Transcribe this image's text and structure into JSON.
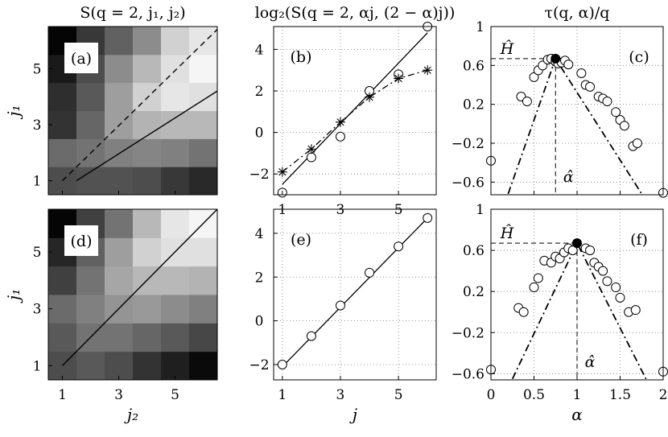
{
  "chart_data": [
    {
      "id": "a",
      "panel_label": "(a)",
      "type": "heatmap",
      "title": "S(q = 2, j₁, j₂)",
      "xlabel": "",
      "ylabel": "j₁",
      "x_ticks": [
        "1",
        "3",
        "5"
      ],
      "y_ticks": [
        "1",
        "3",
        "5"
      ],
      "grid_values": [
        [
          0.3,
          0.32,
          0.32,
          0.3,
          0.22,
          0.16
        ],
        [
          0.42,
          0.45,
          0.5,
          0.52,
          0.5,
          0.45
        ],
        [
          0.2,
          0.4,
          0.62,
          0.7,
          0.72,
          0.72
        ],
        [
          0.18,
          0.35,
          0.62,
          0.82,
          0.9,
          0.88
        ],
        [
          0.1,
          0.3,
          0.55,
          0.72,
          0.88,
          0.96
        ],
        [
          0.02,
          0.22,
          0.38,
          0.55,
          0.82,
          0.9
        ]
      ],
      "lines": [
        {
          "style": "dashed",
          "x": [
            1,
            6.5
          ],
          "y": [
            1,
            6.4
          ]
        },
        {
          "style": "solid",
          "x": [
            1.5,
            6.5
          ],
          "y": [
            1,
            4.2
          ]
        }
      ]
    },
    {
      "id": "b",
      "panel_label": "(b)",
      "type": "line",
      "title": "log₂(S(q = 2, αj, (2 − α)j))",
      "xlabel": "",
      "ylabel": "",
      "xlim": [
        0.7,
        6.3
      ],
      "ylim": [
        -3,
        5.1
      ],
      "x_ticks": [
        1,
        3,
        5
      ],
      "y_ticks": [
        4,
        2,
        0,
        -2
      ],
      "grid": true,
      "series": [
        {
          "marker": "circle",
          "x": [
            1,
            2,
            3,
            4,
            5,
            6
          ],
          "y": [
            -2.9,
            -1.2,
            -0.2,
            2.0,
            2.8,
            5.1
          ]
        },
        {
          "marker": "star",
          "x": [
            1,
            2,
            3,
            4,
            5,
            6
          ],
          "y": [
            -1.9,
            -0.8,
            0.5,
            1.7,
            2.6,
            3.0
          ]
        },
        {
          "style": "solid",
          "x": [
            1,
            6
          ],
          "y": [
            -2.5,
            4.8
          ]
        },
        {
          "style": "dashdot",
          "x": [
            1,
            2,
            3,
            4,
            5,
            6
          ],
          "y": [
            -1.9,
            -0.8,
            0.5,
            1.7,
            2.6,
            3.0
          ]
        }
      ]
    },
    {
      "id": "c",
      "panel_label": "(c)",
      "type": "scatter",
      "title": "τ(q, α)/q",
      "xlabel": "",
      "ylabel": "",
      "xlim": [
        0,
        2
      ],
      "ylim": [
        -0.73,
        1.0
      ],
      "x_ticks": [
        0,
        0.5,
        1,
        1.5,
        2
      ],
      "y_ticks": [
        "1",
        "0.6",
        "0.2",
        "-0.2",
        "-0.6"
      ],
      "y_tick_values": [
        1,
        0.6,
        0.2,
        -0.2,
        -0.6
      ],
      "grid": true,
      "annotations": {
        "H_label": "Ĥ",
        "alpha_label": "α̂",
        "H": 0.67,
        "alpha": 0.75
      },
      "series": [
        {
          "marker": "open-circle",
          "x": [
            0,
            0.35,
            0.42,
            0.5,
            0.55,
            0.6,
            0.66,
            0.7,
            0.75,
            0.78,
            0.82,
            0.86,
            0.9,
            1.05,
            1.1,
            1.15,
            1.25,
            1.3,
            1.35,
            1.45,
            1.5,
            1.55,
            1.65,
            1.7,
            2.0
          ],
          "y": [
            -0.38,
            0.28,
            0.23,
            0.48,
            0.55,
            0.6,
            0.66,
            0.67,
            0.64,
            0.62,
            0.63,
            0.65,
            0.61,
            0.52,
            0.4,
            0.38,
            0.28,
            0.26,
            0.23,
            0.12,
            0.04,
            -0.02,
            -0.23,
            -0.2,
            -0.71
          ]
        },
        {
          "marker": "filled-circle",
          "x": [
            0.75
          ],
          "y": [
            0.67
          ]
        },
        {
          "style": "dashdot",
          "x": [
            0.2,
            0.75,
            1.75
          ],
          "y": [
            -0.72,
            0.67,
            -0.72
          ]
        }
      ]
    },
    {
      "id": "d",
      "panel_label": "(d)",
      "type": "heatmap",
      "title": "",
      "xlabel": "j₂",
      "ylabel": "j₁",
      "x_ticks": [
        "1",
        "3",
        "5"
      ],
      "y_ticks": [
        "1",
        "3",
        "5"
      ],
      "grid_values": [
        [
          0.3,
          0.35,
          0.3,
          0.2,
          0.12,
          0.04
        ],
        [
          0.35,
          0.45,
          0.45,
          0.4,
          0.35,
          0.28
        ],
        [
          0.42,
          0.5,
          0.58,
          0.6,
          0.55,
          0.5
        ],
        [
          0.25,
          0.45,
          0.65,
          0.72,
          0.72,
          0.7
        ],
        [
          0.15,
          0.38,
          0.62,
          0.82,
          0.88,
          0.88
        ],
        [
          0.02,
          0.25,
          0.45,
          0.72,
          0.9,
          0.96
        ]
      ],
      "lines": [
        {
          "style": "solid",
          "x": [
            1,
            6.5
          ],
          "y": [
            1,
            6.5
          ]
        }
      ]
    },
    {
      "id": "e",
      "panel_label": "(e)",
      "type": "line",
      "title": "",
      "xlabel": "j",
      "ylabel": "",
      "xlim": [
        0.7,
        6.3
      ],
      "ylim": [
        -2.7,
        5.1
      ],
      "x_ticks": [
        1,
        3,
        5
      ],
      "y_ticks": [
        4,
        2,
        0,
        -2
      ],
      "grid": true,
      "series": [
        {
          "marker": "circle",
          "x": [
            1,
            2,
            3,
            4,
            5,
            6
          ],
          "y": [
            -2.0,
            -0.7,
            0.7,
            2.2,
            3.4,
            4.7
          ]
        },
        {
          "style": "solid",
          "x": [
            1,
            6
          ],
          "y": [
            -2.1,
            4.7
          ]
        }
      ]
    },
    {
      "id": "f",
      "panel_label": "(f)",
      "type": "scatter",
      "title": "",
      "xlabel": "α",
      "ylabel": "",
      "xlim": [
        0,
        2
      ],
      "ylim": [
        -0.66,
        1.0
      ],
      "x_ticks": [
        0,
        0.5,
        1,
        1.5,
        2
      ],
      "x_tick_labels": [
        "0",
        "0.5",
        "1",
        "1.5",
        "2"
      ],
      "y_ticks": [
        "1",
        "0.6",
        "0.2",
        "-0.2",
        "-0.6"
      ],
      "y_tick_values": [
        1,
        0.6,
        0.2,
        -0.2,
        -0.6
      ],
      "grid": true,
      "annotations": {
        "H_label": "Ĥ",
        "alpha_label": "α̂",
        "H": 0.67,
        "alpha": 1.0
      },
      "series": [
        {
          "marker": "open-circle",
          "x": [
            0,
            0.32,
            0.38,
            0.5,
            0.55,
            0.62,
            0.7,
            0.75,
            0.8,
            0.85,
            0.9,
            0.95,
            1.1,
            1.15,
            1.2,
            1.25,
            1.3,
            1.35,
            1.45,
            1.5,
            1.6,
            1.68,
            2.0
          ],
          "y": [
            -0.56,
            0.04,
            0.0,
            0.24,
            0.33,
            0.5,
            0.48,
            0.54,
            0.52,
            0.58,
            0.62,
            0.6,
            0.62,
            0.6,
            0.48,
            0.44,
            0.4,
            0.3,
            0.24,
            0.14,
            0.0,
            0.02,
            -0.58
          ]
        },
        {
          "marker": "filled-circle",
          "x": [
            1.0
          ],
          "y": [
            0.67
          ]
        },
        {
          "style": "dashdot",
          "x": [
            0.25,
            1.0,
            1.8
          ],
          "y": [
            -0.65,
            0.67,
            -0.65
          ]
        }
      ]
    }
  ]
}
